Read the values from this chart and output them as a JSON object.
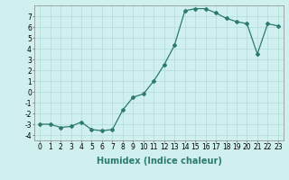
{
  "x": [
    0,
    1,
    2,
    3,
    4,
    5,
    6,
    7,
    8,
    9,
    10,
    11,
    12,
    13,
    14,
    15,
    16,
    17,
    18,
    19,
    20,
    21,
    22,
    23
  ],
  "y": [
    -3,
    -3,
    -3.3,
    -3.2,
    -2.8,
    -3.5,
    -3.6,
    -3.5,
    -1.7,
    -0.5,
    -0.2,
    1.0,
    2.5,
    4.3,
    7.5,
    7.7,
    7.7,
    7.3,
    6.8,
    6.5,
    6.3,
    3.5,
    6.3,
    6.1
  ],
  "line_color": "#2d7a6e",
  "marker": "D",
  "markersize": 2.0,
  "bg_color": "#cff0ee",
  "grid_color": "#b0ddd8",
  "xlabel": "Humidex (Indice chaleur)",
  "ylim": [
    -4.5,
    8.0
  ],
  "xlim": [
    -0.5,
    23.5
  ],
  "yticks": [
    -4,
    -3,
    -2,
    -1,
    0,
    1,
    2,
    3,
    4,
    5,
    6,
    7
  ],
  "xticks": [
    0,
    1,
    2,
    3,
    4,
    5,
    6,
    7,
    8,
    9,
    10,
    11,
    12,
    13,
    14,
    15,
    16,
    17,
    18,
    19,
    20,
    21,
    22,
    23
  ],
  "tick_fontsize": 5.5,
  "xlabel_fontsize": 7
}
